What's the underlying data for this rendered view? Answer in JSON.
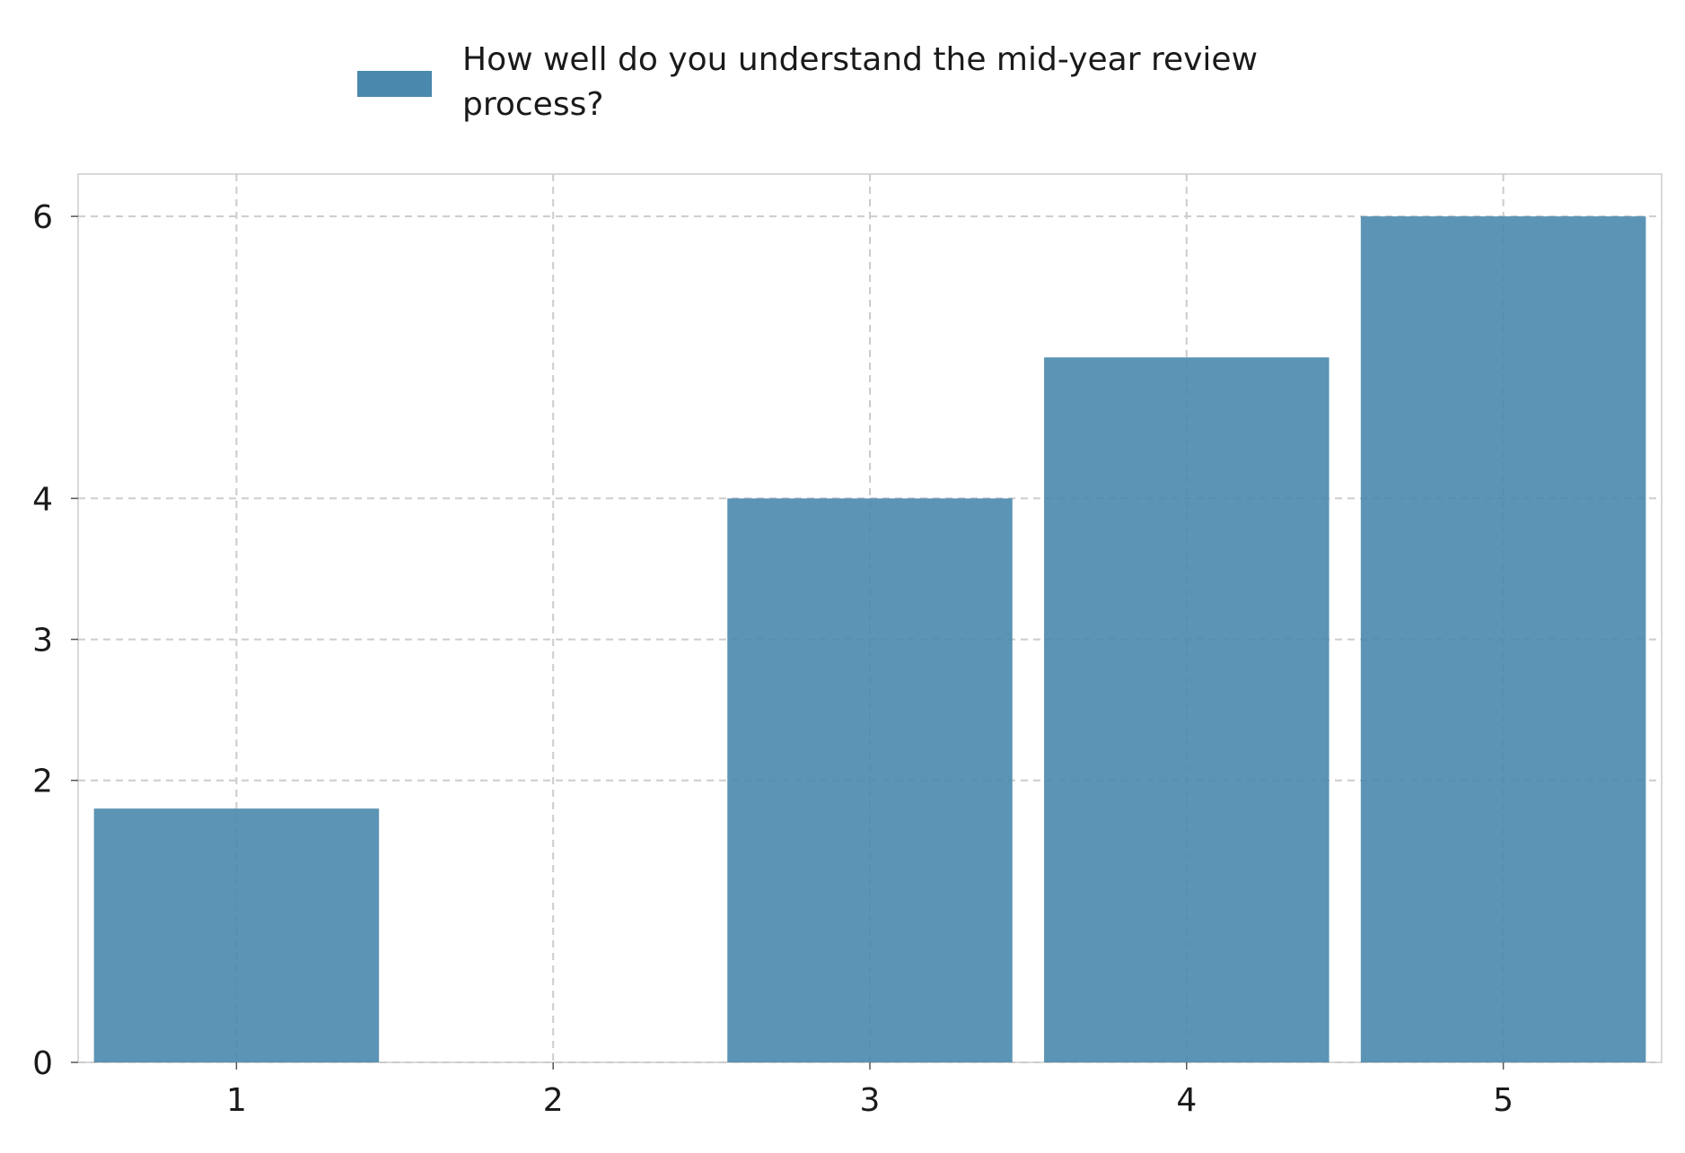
{
  "chart_data": {
    "type": "bar",
    "categories": [
      "1",
      "2",
      "3",
      "4",
      "5"
    ],
    "series": [
      {
        "name": "How well do you understand the mid-year review process?",
        "values": [
          1.8,
          0,
          4.0,
          5.0,
          6.0
        ]
      }
    ],
    "legend_lines": [
      "How well do you understand the mid-year review",
      "process?"
    ],
    "y_ticks": [
      0,
      2,
      3,
      4,
      6
    ],
    "ylim": [
      0,
      6.3
    ],
    "grid": true,
    "legend_position": "top-center",
    "colors": {
      "bar": "#4a88ad",
      "grid": "#cccccc",
      "axes": "#cccccc"
    }
  }
}
